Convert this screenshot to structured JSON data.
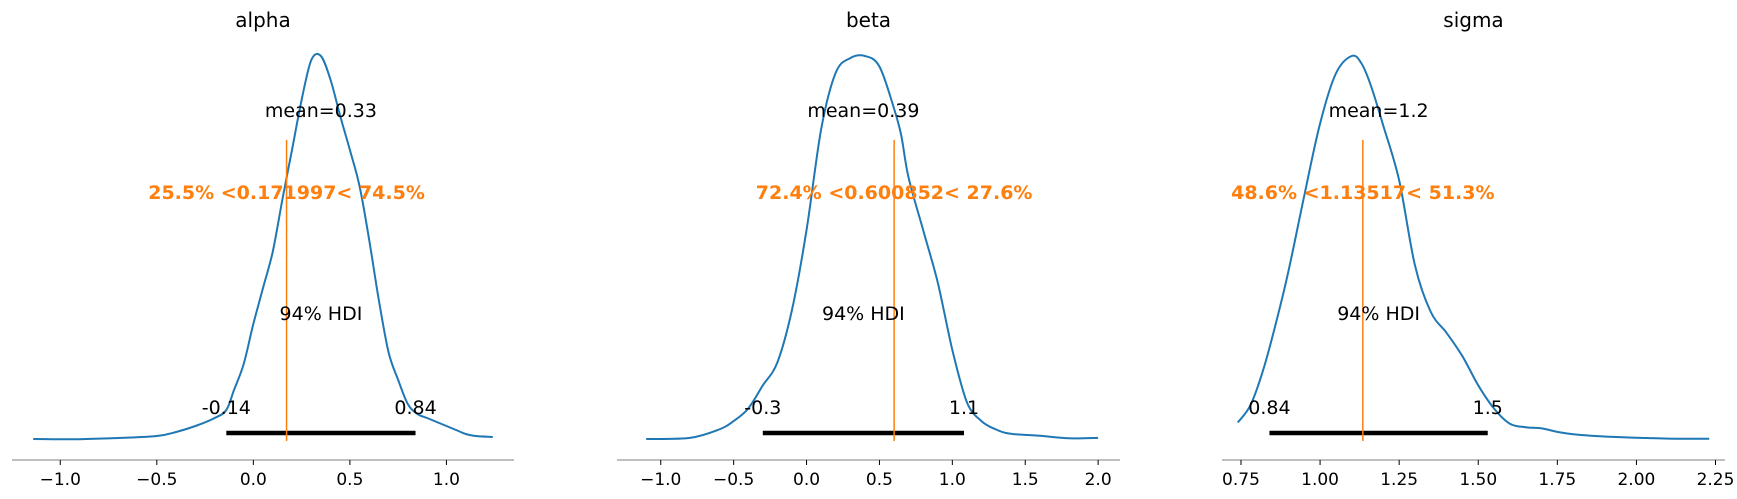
{
  "colors": {
    "kde": "#1f77b4",
    "ref": "#ff7f0e",
    "hdi": "#000000",
    "axis": "#808080"
  },
  "chart_data": [
    {
      "type": "line",
      "title": "alpha",
      "mean_label": "mean=0.33",
      "hdi_label": "94% HDI",
      "hdi": [
        -0.14,
        0.84
      ],
      "hdi_labels": [
        "-0.14",
        "0.84"
      ],
      "ref_value": 0.171997,
      "ref_label": "25.5% <0.171997< 74.5%",
      "xlim": [
        -1.25,
        1.35
      ],
      "xticks": [
        -1.0,
        -0.5,
        0.0,
        0.5,
        1.0
      ],
      "xtick_labels": [
        "−1.0",
        "−0.5",
        "0.0",
        "0.5",
        "1.0"
      ],
      "density": {
        "x": [
          -1.14,
          -0.9,
          -0.7,
          -0.5,
          -0.4,
          -0.3,
          -0.2,
          -0.14,
          -0.1,
          -0.05,
          0.0,
          0.05,
          0.1,
          0.15,
          0.2,
          0.25,
          0.3,
          0.35,
          0.4,
          0.45,
          0.5,
          0.55,
          0.6,
          0.65,
          0.7,
          0.75,
          0.8,
          0.85,
          0.9,
          0.95,
          1.0,
          1.05,
          1.1,
          1.15,
          1.24
        ],
        "y": [
          0.005,
          0.004,
          0.01,
          0.02,
          0.04,
          0.07,
          0.11,
          0.15,
          0.25,
          0.38,
          0.58,
          0.76,
          0.94,
          1.2,
          1.45,
          1.7,
          1.9,
          1.92,
          1.8,
          1.62,
          1.45,
          1.27,
          1.0,
          0.7,
          0.44,
          0.3,
          0.18,
          0.13,
          0.11,
          0.09,
          0.07,
          0.05,
          0.03,
          0.02,
          0.015
        ]
      }
    },
    {
      "type": "line",
      "title": "beta",
      "mean_label": "mean=0.39",
      "hdi_label": "94% HDI",
      "hdi": [
        -0.3,
        1.08
      ],
      "hdi_labels": [
        "-0.3",
        "1.1"
      ],
      "ref_value": 0.600852,
      "ref_label": "72.4% <0.600852< 27.6%",
      "xlim": [
        -1.3,
        2.15
      ],
      "xticks": [
        -1.0,
        -0.5,
        0.0,
        0.5,
        1.0,
        1.5,
        2.0
      ],
      "xtick_labels": [
        "−1.0",
        "−0.5",
        "0.0",
        "0.5",
        "1.0",
        "1.5",
        "2.0"
      ],
      "density": {
        "x": [
          -1.1,
          -0.8,
          -0.6,
          -0.5,
          -0.4,
          -0.3,
          -0.2,
          -0.1,
          0.0,
          0.1,
          0.2,
          0.3,
          0.4,
          0.5,
          0.6,
          0.65,
          0.7,
          0.8,
          0.9,
          1.0,
          1.1,
          1.2,
          1.3,
          1.4,
          1.6,
          1.8,
          2.0
        ],
        "y": [
          0.005,
          0.01,
          0.05,
          0.09,
          0.15,
          0.26,
          0.37,
          0.62,
          1.0,
          1.48,
          1.75,
          1.82,
          1.83,
          1.78,
          1.58,
          1.45,
          1.25,
          1.0,
          0.75,
          0.43,
          0.18,
          0.09,
          0.05,
          0.03,
          0.02,
          0.008,
          0.01
        ]
      }
    },
    {
      "type": "line",
      "title": "sigma",
      "mean_label": "mean=1.2",
      "hdi_label": "94% HDI",
      "hdi": [
        0.84,
        1.53
      ],
      "hdi_labels": [
        "0.84",
        "1.5"
      ],
      "ref_value": 1.13517,
      "ref_label": "48.6% <1.13517< 51.3%",
      "xlim": [
        0.69,
        2.28
      ],
      "xticks": [
        0.75,
        1.0,
        1.25,
        1.5,
        1.75,
        2.0,
        2.25
      ],
      "xtick_labels": [
        "0.75",
        "1.00",
        "1.25",
        "1.50",
        "1.75",
        "2.00",
        "2.25"
      ],
      "density": {
        "x": [
          0.74,
          0.78,
          0.82,
          0.86,
          0.9,
          0.95,
          1.0,
          1.05,
          1.1,
          1.13,
          1.16,
          1.2,
          1.25,
          1.3,
          1.35,
          1.4,
          1.45,
          1.5,
          1.55,
          1.6,
          1.65,
          1.7,
          1.75,
          1.8,
          1.9,
          2.0,
          2.1,
          2.23
        ],
        "y": [
          0.15,
          0.3,
          0.6,
          1.0,
          1.45,
          2.1,
          2.72,
          3.15,
          3.3,
          3.24,
          3.05,
          2.7,
          2.23,
          1.5,
          1.1,
          0.92,
          0.72,
          0.47,
          0.27,
          0.14,
          0.11,
          0.1,
          0.07,
          0.05,
          0.03,
          0.02,
          0.012,
          0.01
        ]
      }
    }
  ]
}
